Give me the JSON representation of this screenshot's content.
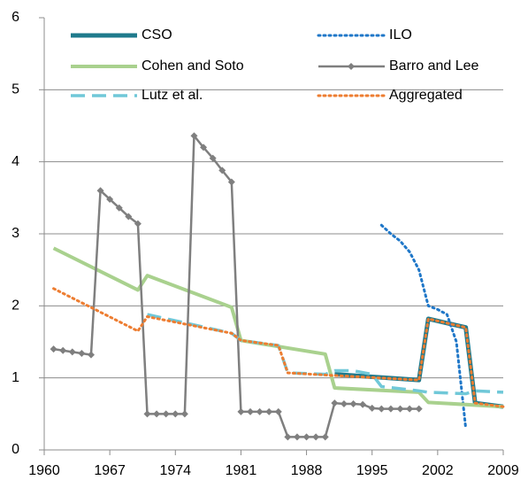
{
  "chart_data": {
    "type": "line",
    "xlim": [
      1960,
      2009
    ],
    "xticks": [
      1960,
      1967,
      1974,
      1981,
      1988,
      1995,
      2002,
      2009
    ],
    "ylim": [
      0,
      6
    ],
    "yticks": [
      0,
      1,
      2,
      3,
      4,
      5,
      6
    ],
    "grid": true,
    "series": [
      {
        "name": "CSO",
        "color": "#1f7a8c",
        "line_style": "solid",
        "width": 5,
        "x": [
          1991,
          2000,
          2001,
          2005,
          2006,
          2009
        ],
        "values": [
          1.05,
          0.97,
          1.82,
          1.7,
          0.65,
          0.6
        ]
      },
      {
        "name": "ILO",
        "color": "#1f77c8",
        "line_style": "dotted",
        "width": 3,
        "x": [
          1996,
          1997,
          1998,
          1999,
          2000,
          2001,
          2002,
          2003,
          2004,
          2005
        ],
        "values": [
          3.12,
          3.0,
          2.9,
          2.75,
          2.5,
          2.0,
          1.95,
          1.88,
          1.5,
          0.3
        ]
      },
      {
        "name": "Cohen and Soto",
        "color": "#a9d18e",
        "line_style": "solid",
        "width": 4,
        "x": [
          1961,
          1970,
          1971,
          1980,
          1981,
          1990,
          1991,
          2000,
          2001,
          2009
        ],
        "values": [
          2.8,
          2.22,
          2.42,
          1.98,
          1.52,
          1.33,
          0.86,
          0.8,
          0.66,
          0.6
        ]
      },
      {
        "name": "Barro and Lee",
        "color": "#7f7f7f",
        "line_style": "solid",
        "width": 2.5,
        "markers": true,
        "x": [
          1961,
          1962,
          1963,
          1964,
          1965,
          1966,
          1967,
          1968,
          1969,
          1970,
          1971,
          1972,
          1973,
          1974,
          1975,
          1976,
          1977,
          1978,
          1979,
          1980,
          1981,
          1982,
          1983,
          1984,
          1985,
          1986,
          1987,
          1988,
          1989,
          1990,
          1991,
          1992,
          1993,
          1994,
          1995,
          1996,
          1997,
          1998,
          1999,
          2000
        ],
        "values": [
          1.4,
          1.38,
          1.36,
          1.34,
          1.32,
          3.6,
          3.48,
          3.36,
          3.24,
          3.14,
          0.5,
          0.5,
          0.5,
          0.5,
          0.5,
          4.36,
          4.2,
          4.05,
          3.88,
          3.72,
          0.53,
          0.53,
          0.53,
          0.53,
          0.53,
          0.18,
          0.18,
          0.18,
          0.18,
          0.18,
          0.65,
          0.64,
          0.64,
          0.63,
          0.58,
          0.57,
          0.57,
          0.57,
          0.57,
          0.57
        ]
      },
      {
        "name": "Lutz et al.",
        "color": "#70c8d8",
        "line_style": "dashed",
        "width": 3.5,
        "x": [
          1971,
          1980,
          1981,
          1985,
          1986,
          1990,
          1991,
          1993,
          1995,
          1996,
          2000,
          2001,
          2005,
          2006,
          2009
        ],
        "values": [
          1.88,
          1.62,
          1.52,
          1.45,
          1.07,
          1.05,
          1.1,
          1.1,
          1.05,
          0.88,
          0.82,
          0.8,
          0.78,
          0.82,
          0.8
        ]
      },
      {
        "name": "Aggregated",
        "color": "#ed7d31",
        "line_style": "dotted",
        "width": 3,
        "x": [
          1961,
          1970,
          1971,
          1980,
          1981,
          1985,
          1986,
          1990,
          2000,
          2001,
          2005,
          2006,
          2009
        ],
        "values": [
          2.24,
          1.65,
          1.85,
          1.62,
          1.52,
          1.45,
          1.07,
          1.04,
          0.97,
          1.82,
          1.7,
          0.65,
          0.6
        ]
      }
    ]
  }
}
